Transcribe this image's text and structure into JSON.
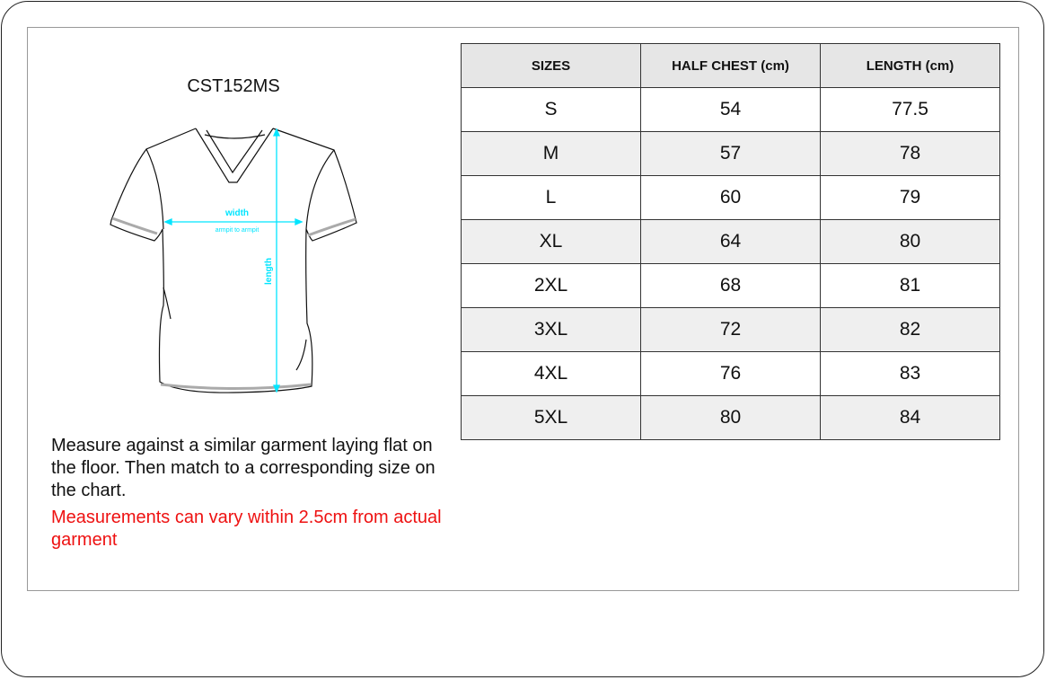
{
  "product_code": "CST152MS",
  "diagram": {
    "width_label": "width",
    "width_sub": "armpit to armpit",
    "length_label": "length",
    "measure_color": "#00ffff"
  },
  "table": {
    "headers": [
      "SIZES",
      "HALF CHEST (cm)",
      "LENGTH (cm)"
    ],
    "rows": [
      [
        "S",
        "54",
        "77.5"
      ],
      [
        "M",
        "57",
        "78"
      ],
      [
        "L",
        "60",
        "79"
      ],
      [
        "XL",
        "64",
        "80"
      ],
      [
        "2XL",
        "68",
        "81"
      ],
      [
        "3XL",
        "72",
        "82"
      ],
      [
        "4XL",
        "76",
        "83"
      ],
      [
        "5XL",
        "80",
        "84"
      ]
    ]
  },
  "instructions": "Measure against a similar garment laying flat on the floor. Then match to a corresponding size on the chart.",
  "disclaimer": "Measurements can vary within 2.5cm from actual garment",
  "disclaimer_color": "#ee1111"
}
